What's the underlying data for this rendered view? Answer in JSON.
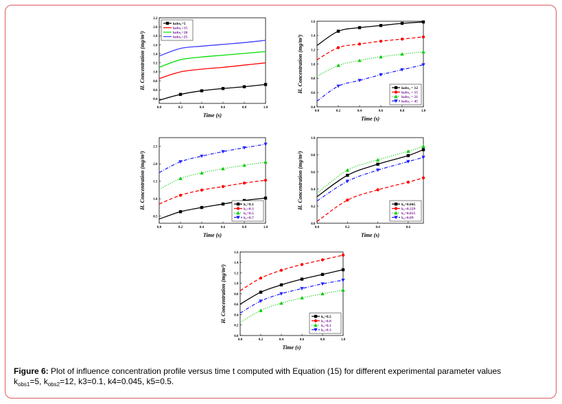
{
  "caption": {
    "label": "Figure 6:",
    "text": "Plot of influence concentration profile versus time t computed with Equation (15) for different experimental parameter values",
    "line2_k1": "k",
    "line2_k1_sub": "obs1",
    "line2_k1_val": "=5, k",
    "line2_k2_sub": "obs2",
    "line2_rest": "=12, k3=0.1, k4=0.045, k5=0.5."
  },
  "chart_data": [
    {
      "type": "line",
      "id": "a",
      "xlabel": "Time (s)",
      "ylabel": "H. Concentration (mg/m³)",
      "xlim": [
        0,
        1.0
      ],
      "ylim": [
        0.3,
        2.2
      ],
      "xticks": [
        "0.0",
        "0.2",
        "0.4",
        "0.6",
        "0.8",
        "1.0"
      ],
      "yticks": [
        "0.4",
        "0.6",
        "0.8",
        "1.0",
        "1.2",
        "1.4",
        "1.6",
        "1.8",
        "2.0",
        "2.2"
      ],
      "ytick_values": [
        0.4,
        0.6,
        0.8,
        1.0,
        1.2,
        1.4,
        1.6,
        1.8,
        2.0,
        2.2
      ],
      "legend_position": "top-left",
      "x": [
        0,
        0.2,
        0.4,
        0.6,
        0.8,
        1.0
      ],
      "series": [
        {
          "name": "kobs₁=5",
          "color": "#000000",
          "dash": "",
          "marker": "square",
          "values": [
            0.37,
            0.5,
            0.58,
            0.63,
            0.67,
            0.72
          ]
        },
        {
          "name": "kobs₁=15",
          "color": "#ff0000",
          "dash": "",
          "marker": "none",
          "values": [
            0.85,
            1.0,
            1.06,
            1.1,
            1.15,
            1.2
          ]
        },
        {
          "name": "kobs₁=20",
          "color": "#00dd00",
          "dash": "",
          "marker": "none",
          "values": [
            1.1,
            1.27,
            1.33,
            1.37,
            1.41,
            1.45
          ]
        },
        {
          "name": "kobs₁=25",
          "color": "#3b3bff",
          "dash": "",
          "marker": "none",
          "values": [
            1.35,
            1.52,
            1.57,
            1.61,
            1.65,
            1.7
          ]
        }
      ]
    },
    {
      "type": "line",
      "id": "b",
      "xlabel": "Time (s)",
      "ylabel": "H. Concentration (mg/m³)",
      "xlim": [
        0,
        1.0
      ],
      "ylim": [
        0.4,
        1.6
      ],
      "xticks": [
        "0.0",
        "0.2",
        "0.4",
        "0.6",
        "0.8",
        "1.0"
      ],
      "yticks": [
        "0.4",
        "0.6",
        "0.8",
        "1.0",
        "1.2",
        "1.4",
        "1.6"
      ],
      "ytick_values": [
        0.4,
        0.6,
        0.8,
        1.0,
        1.2,
        1.4,
        1.6
      ],
      "legend_position": "bottom-right",
      "x": [
        0,
        0.2,
        0.4,
        0.6,
        0.8,
        1.0
      ],
      "series": [
        {
          "name": "kobs₂ = 12",
          "color": "#000000",
          "dash": "",
          "marker": "square",
          "values": [
            1.26,
            1.46,
            1.51,
            1.54,
            1.57,
            1.59
          ]
        },
        {
          "name": "kobs₂ = 15",
          "color": "#ff0000",
          "dash": "5,3",
          "marker": "circle",
          "values": [
            1.06,
            1.23,
            1.28,
            1.32,
            1.35,
            1.38
          ]
        },
        {
          "name": "kobs₂ = 21",
          "color": "#00cc00",
          "dash": "1,2",
          "marker": "triangle",
          "values": [
            0.83,
            0.98,
            1.05,
            1.1,
            1.14,
            1.17
          ]
        },
        {
          "name": "kobs₂ = 45",
          "color": "#2222ff",
          "dash": "5,2,1,2",
          "marker": "triangle-down",
          "values": [
            0.48,
            0.69,
            0.77,
            0.85,
            0.92,
            0.99
          ]
        }
      ]
    },
    {
      "type": "line",
      "id": "c",
      "xlabel": "Time (s)",
      "ylabel": "H. Concentration (mg/m³)",
      "xlim": [
        0,
        1.0
      ],
      "ylim": [
        0.3,
        2.75
      ],
      "xticks": [
        "0.0",
        "0.2",
        "0.4",
        "0.6",
        "0.8",
        "1.0"
      ],
      "yticks": [
        "0.5",
        "1.0",
        "1.5",
        "2.0",
        "2.5"
      ],
      "ytick_values": [
        0.5,
        1.0,
        1.5,
        2.0,
        2.5
      ],
      "legend_position": "bottom-right",
      "x": [
        0,
        0.2,
        0.4,
        0.6,
        0.8,
        1.0
      ],
      "series": [
        {
          "name": "k₃=0.1",
          "color": "#000000",
          "dash": "",
          "marker": "square",
          "values": [
            0.42,
            0.63,
            0.75,
            0.85,
            0.95,
            1.02
          ]
        },
        {
          "name": "k₃=0.3",
          "color": "#ff0000",
          "dash": "5,3",
          "marker": "circle",
          "values": [
            0.85,
            1.1,
            1.25,
            1.35,
            1.45,
            1.53
          ]
        },
        {
          "name": "k₃=0.5",
          "color": "#00cc00",
          "dash": "1,2",
          "marker": "triangle",
          "values": [
            1.27,
            1.58,
            1.74,
            1.86,
            1.96,
            2.05
          ]
        },
        {
          "name": "k₃=0.7",
          "color": "#2222ff",
          "dash": "5,2,1,2",
          "marker": "triangle-down",
          "values": [
            1.75,
            2.06,
            2.22,
            2.35,
            2.46,
            2.56
          ]
        }
      ]
    },
    {
      "type": "line",
      "id": "d",
      "xlabel": "Time (s)",
      "ylabel": "H. Concentration (mg/m³)",
      "xlim": [
        0,
        0.7
      ],
      "ylim": [
        0.0,
        1.0
      ],
      "xticks": [
        "0.0",
        "0.2",
        "0.4",
        "0.6"
      ],
      "xtick_values": [
        0.0,
        0.2,
        0.4,
        0.6
      ],
      "yticks": [
        "0.0",
        "0.2",
        "0.4",
        "0.6",
        "0.8",
        "1.0"
      ],
      "ytick_values": [
        0.0,
        0.2,
        0.4,
        0.6,
        0.8,
        1.0
      ],
      "legend_position": "bottom-right",
      "x": [
        0,
        0.2,
        0.4,
        0.6,
        0.7
      ],
      "series": [
        {
          "name": "k₄=0.045",
          "color": "#000000",
          "dash": "",
          "marker": "square",
          "values": [
            0.31,
            0.56,
            0.69,
            0.79,
            0.86
          ]
        },
        {
          "name": "k₄=0.229",
          "color": "#ff0000",
          "dash": "5,3",
          "marker": "circle",
          "values": [
            0.02,
            0.27,
            0.39,
            0.48,
            0.53
          ]
        },
        {
          "name": "k₄=0.015",
          "color": "#00cc00",
          "dash": "1,2",
          "marker": "triangle",
          "values": [
            0.35,
            0.62,
            0.74,
            0.84,
            0.9
          ]
        },
        {
          "name": "k₄=0.09",
          "color": "#2222ff",
          "dash": "5,2,1,2",
          "marker": "triangle-down",
          "values": [
            0.26,
            0.49,
            0.62,
            0.72,
            0.77
          ]
        }
      ]
    },
    {
      "type": "line",
      "id": "e",
      "xlabel": "Time (s)",
      "ylabel": "H. Concentration (mg/m³)",
      "xlim": [
        0,
        1.0
      ],
      "ylim": [
        0.0,
        1.6
      ],
      "xticks": [
        "0.0",
        "0.2",
        "0.4",
        "0.6",
        "0.8",
        "1.0"
      ],
      "yticks": [
        "0.0",
        "0.2",
        "0.4",
        "0.6",
        "0.8",
        "1.0",
        "1.2",
        "1.4",
        "1.6"
      ],
      "ytick_values": [
        0.0,
        0.2,
        0.4,
        0.6,
        0.8,
        1.0,
        1.2,
        1.4,
        1.6
      ],
      "legend_position": "bottom-right",
      "x": [
        0,
        0.2,
        0.4,
        0.6,
        0.8,
        1.0
      ],
      "series": [
        {
          "name": "k₅=0.5",
          "color": "#000000",
          "dash": "",
          "marker": "square",
          "values": [
            0.6,
            0.83,
            0.97,
            1.08,
            1.17,
            1.26
          ]
        },
        {
          "name": "k₅=0.8",
          "color": "#ff0000",
          "dash": "5,3",
          "marker": "circle",
          "values": [
            0.86,
            1.1,
            1.25,
            1.36,
            1.45,
            1.54
          ]
        },
        {
          "name": "k₅=0.1",
          "color": "#00cc00",
          "dash": "1,2",
          "marker": "triangle",
          "values": [
            0.25,
            0.48,
            0.62,
            0.72,
            0.8,
            0.87
          ]
        },
        {
          "name": "k₅=0.3",
          "color": "#2222ff",
          "dash": "5,2,1,2",
          "marker": "triangle-down",
          "values": [
            0.43,
            0.66,
            0.8,
            0.9,
            0.99,
            1.06
          ]
        }
      ]
    }
  ]
}
